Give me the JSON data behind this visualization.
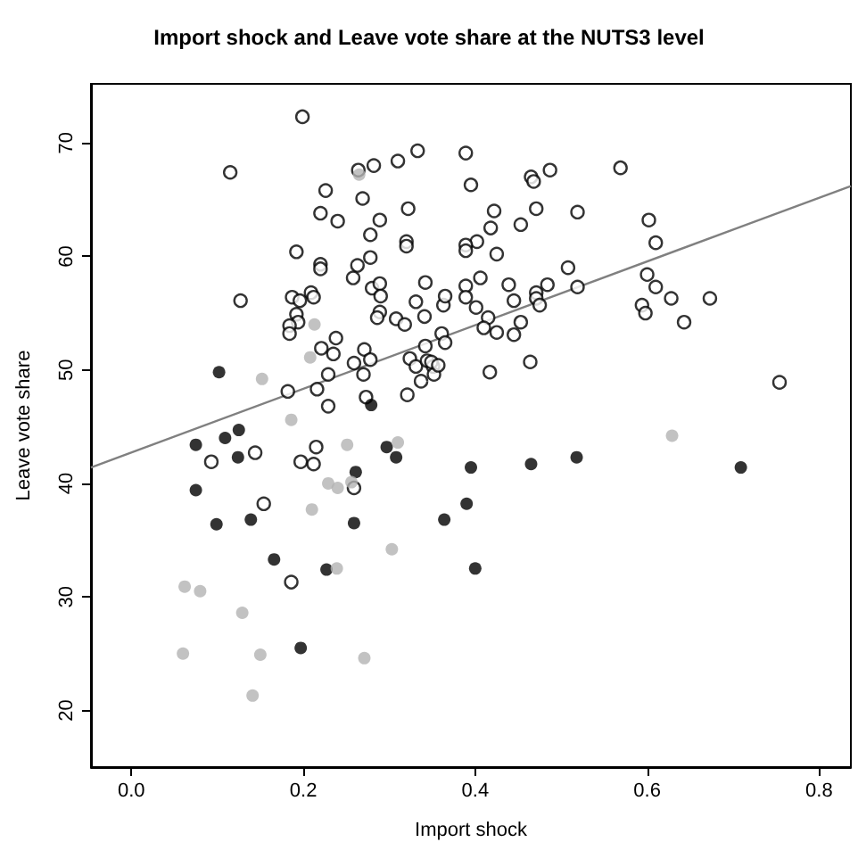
{
  "chart_data": {
    "type": "scatter",
    "title": "Import shock and Leave vote share at the NUTS3 level",
    "xlabel": "Import shock",
    "ylabel": "Leave vote share",
    "xlim": [
      -0.047,
      0.837
    ],
    "ylim": [
      15,
      75.2
    ],
    "xticks": [
      {
        "value": 0,
        "label": "0.0"
      },
      {
        "value": 0.2,
        "label": "0.2"
      },
      {
        "value": 0.4,
        "label": "0.4"
      },
      {
        "value": 0.6,
        "label": "0.6"
      },
      {
        "value": 0.8,
        "label": "0.8"
      }
    ],
    "yticks": [
      20,
      30,
      40,
      50,
      60,
      70
    ],
    "marker": "circle",
    "series": [
      {
        "color": "#000000",
        "x": [
          0.199,
          0.115,
          0.264,
          0.282,
          0.31,
          0.333,
          0.226,
          0.269,
          0.22,
          0.24,
          0.322,
          0.289,
          0.278,
          0.32,
          0.32,
          0.192,
          0.278,
          0.22,
          0.22,
          0.263,
          0.258,
          0.342,
          0.28,
          0.289,
          0.29,
          0.127,
          0.187,
          0.196,
          0.209,
          0.212,
          0.331,
          0.363,
          0.289,
          0.286,
          0.308,
          0.318,
          0.341,
          0.192,
          0.194,
          0.184,
          0.184,
          0.361,
          0.238,
          0.221,
          0.235,
          0.271,
          0.259,
          0.278,
          0.27,
          0.229,
          0.342,
          0.324,
          0.331,
          0.344,
          0.351,
          0.352,
          0.337,
          0.321,
          0.273,
          0.216,
          0.182,
          0.229,
          0.389,
          0.569,
          0.465,
          0.468,
          0.487,
          0.395,
          0.422,
          0.471,
          0.519,
          0.602,
          0.418,
          0.453,
          0.61,
          0.402,
          0.389,
          0.389,
          0.425,
          0.508,
          0.6,
          0.406,
          0.439,
          0.484,
          0.519,
          0.61,
          0.389,
          0.389,
          0.365,
          0.401,
          0.445,
          0.471,
          0.471,
          0.475,
          0.628,
          0.673,
          0.594,
          0.598,
          0.643,
          0.415,
          0.453,
          0.41,
          0.425,
          0.445,
          0.365,
          0.349,
          0.357,
          0.417,
          0.464,
          0.754,
          0.093,
          0.144,
          0.215,
          0.197,
          0.212,
          0.259,
          0.154,
          0.186
        ],
        "values": [
          72.3,
          67.4,
          67.6,
          68.0,
          68.4,
          69.3,
          65.8,
          65.1,
          63.8,
          63.1,
          64.2,
          63.2,
          61.9,
          61.3,
          60.9,
          60.4,
          59.9,
          59.3,
          58.9,
          59.2,
          58.1,
          57.7,
          57.2,
          57.6,
          56.5,
          56.1,
          56.4,
          56.1,
          56.8,
          56.4,
          56.0,
          55.7,
          55.1,
          54.6,
          54.5,
          54.0,
          54.7,
          54.9,
          54.2,
          53.9,
          53.2,
          53.2,
          52.8,
          51.9,
          51.4,
          51.8,
          50.6,
          50.9,
          49.6,
          49.6,
          52.1,
          51.0,
          50.3,
          50.8,
          50.3,
          49.6,
          49.0,
          47.8,
          47.6,
          48.3,
          48.1,
          46.8,
          69.1,
          67.8,
          67.0,
          66.6,
          67.6,
          66.3,
          64.0,
          64.2,
          63.9,
          63.2,
          62.5,
          62.8,
          61.2,
          61.3,
          61.0,
          60.5,
          60.2,
          59.0,
          58.4,
          58.1,
          57.5,
          57.5,
          57.3,
          57.3,
          57.4,
          56.4,
          56.5,
          55.5,
          56.1,
          56.8,
          56.3,
          55.7,
          56.3,
          56.3,
          55.7,
          55.0,
          54.2,
          54.6,
          54.2,
          53.7,
          53.3,
          53.1,
          52.4,
          50.7,
          50.4,
          49.8,
          50.7,
          48.9,
          41.9,
          42.7,
          43.2,
          41.9,
          41.7,
          39.6,
          38.2,
          31.3
        ]
      },
      {
        "color": "#000000",
        "x": [
          0.102,
          0.279,
          0.075,
          0.109,
          0.125,
          0.124,
          0.075,
          0.099,
          0.139,
          0.166,
          0.227,
          0.197,
          0.261,
          0.259,
          0.297,
          0.308,
          0.364,
          0.395,
          0.39,
          0.4,
          0.465,
          0.518,
          0.709
        ],
        "values": [
          49.8,
          46.9,
          43.4,
          44.0,
          44.7,
          42.3,
          39.4,
          36.4,
          36.8,
          33.3,
          32.4,
          25.5,
          41.0,
          36.5,
          43.2,
          42.3,
          36.8,
          41.4,
          38.2,
          32.5,
          41.7,
          42.3,
          41.4
        ]
      },
      {
        "color": "#b3b3b3",
        "x": [
          0.186,
          0.251,
          0.31,
          0.229,
          0.24,
          0.256,
          0.21,
          0.303,
          0.239,
          0.062,
          0.08,
          0.129,
          0.06,
          0.15,
          0.271,
          0.141,
          0.152,
          0.213,
          0.208,
          0.265,
          0.629
        ],
        "values": [
          45.6,
          43.4,
          43.6,
          40.0,
          39.6,
          40.1,
          37.7,
          34.2,
          32.5,
          30.9,
          30.5,
          28.6,
          25.0,
          24.9,
          24.6,
          21.3,
          49.2,
          54.0,
          51.1,
          67.2,
          44.2
        ]
      },
      {
        "type": "line",
        "color": "#808080",
        "line_style": "solid",
        "marker": "none",
        "x": [
          -0.047,
          0.837
        ],
        "values": [
          41.4,
          66.2
        ]
      }
    ]
  }
}
